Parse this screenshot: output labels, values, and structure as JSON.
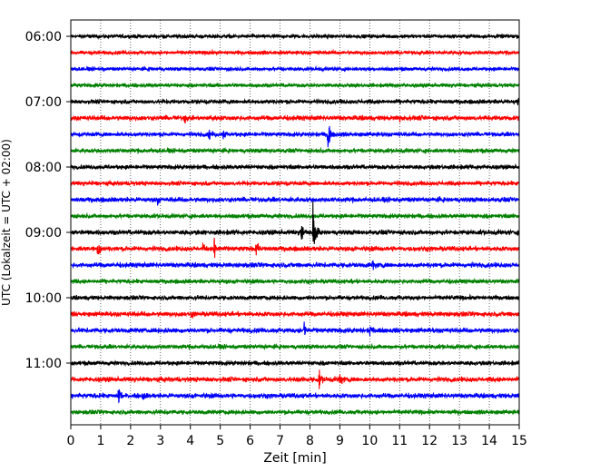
{
  "chart_data": {
    "type": "line",
    "title": "",
    "xlabel": "Zeit  [min]",
    "ylabel": "UTC (Lokalzeit = UTC + 02:00)",
    "xlim": [
      0,
      15
    ],
    "x_ticks": [
      "0",
      "1",
      "2",
      "3",
      "4",
      "5",
      "6",
      "7",
      "8",
      "9",
      "10",
      "11",
      "12",
      "13",
      "14",
      "15"
    ],
    "y_tick_labels": [
      "06:00",
      "07:00",
      "08:00",
      "09:00",
      "10:00",
      "11:00"
    ],
    "grid": "vertical dotted",
    "legend": "none",
    "colors": [
      "#000000",
      "#ff0000",
      "#0000ff",
      "#008000"
    ],
    "traces": [
      {
        "start": "06:00",
        "color": "#000000",
        "noise": 0.35,
        "events": []
      },
      {
        "start": "06:15",
        "color": "#ff0000",
        "noise": 0.35,
        "events": []
      },
      {
        "start": "06:30",
        "color": "#0000ff",
        "noise": 0.35,
        "events": []
      },
      {
        "start": "06:45",
        "color": "#008000",
        "noise": 0.35,
        "events": []
      },
      {
        "start": "07:00",
        "color": "#000000",
        "noise": 0.4,
        "events": [
          [
            14.95,
            0.6
          ]
        ]
      },
      {
        "start": "07:15",
        "color": "#ff0000",
        "noise": 0.45,
        "events": [
          [
            3.8,
            0.7
          ],
          [
            4.7,
            0.5
          ],
          [
            11.0,
            0.4
          ]
        ]
      },
      {
        "start": "07:30",
        "color": "#0000ff",
        "noise": 0.4,
        "events": [
          [
            4.6,
            0.8
          ],
          [
            5.1,
            0.8
          ],
          [
            8.6,
            1.9
          ]
        ]
      },
      {
        "start": "07:45",
        "color": "#008000",
        "noise": 0.4,
        "events": []
      },
      {
        "start": "08:00",
        "color": "#000000",
        "noise": 0.4,
        "events": []
      },
      {
        "start": "08:15",
        "color": "#ff0000",
        "noise": 0.4,
        "events": []
      },
      {
        "start": "08:30",
        "color": "#0000ff",
        "noise": 0.45,
        "events": [
          [
            2.9,
            0.6
          ]
        ]
      },
      {
        "start": "08:45",
        "color": "#008000",
        "noise": 0.4,
        "events": []
      },
      {
        "start": "09:00",
        "color": "#000000",
        "noise": 0.45,
        "events": [
          [
            7.7,
            1.4
          ],
          [
            8.1,
            3.6
          ]
        ]
      },
      {
        "start": "09:15",
        "color": "#ff0000",
        "noise": 0.45,
        "events": [
          [
            0.9,
            1.2
          ],
          [
            4.4,
            0.9
          ],
          [
            4.8,
            1.2
          ],
          [
            6.2,
            1.0
          ]
        ]
      },
      {
        "start": "09:30",
        "color": "#0000ff",
        "noise": 0.45,
        "events": [
          [
            10.1,
            0.7
          ]
        ]
      },
      {
        "start": "09:45",
        "color": "#008000",
        "noise": 0.4,
        "events": []
      },
      {
        "start": "10:00",
        "color": "#000000",
        "noise": 0.4,
        "events": []
      },
      {
        "start": "10:15",
        "color": "#ff0000",
        "noise": 0.45,
        "events": [
          [
            4.0,
            0.7
          ]
        ]
      },
      {
        "start": "10:30",
        "color": "#0000ff",
        "noise": 0.45,
        "events": [
          [
            7.8,
            0.9
          ],
          [
            10.0,
            0.7
          ]
        ]
      },
      {
        "start": "10:45",
        "color": "#008000",
        "noise": 0.4,
        "events": []
      },
      {
        "start": "11:00",
        "color": "#000000",
        "noise": 0.4,
        "events": []
      },
      {
        "start": "11:15",
        "color": "#ff0000",
        "noise": 0.45,
        "events": [
          [
            7.5,
            0.5
          ],
          [
            8.3,
            1.4
          ],
          [
            9.0,
            1.0
          ]
        ]
      },
      {
        "start": "11:30",
        "color": "#0000ff",
        "noise": 0.45,
        "events": [
          [
            1.6,
            1.0
          ],
          [
            2.4,
            0.6
          ]
        ]
      },
      {
        "start": "11:45",
        "color": "#008000",
        "noise": 0.4,
        "events": []
      }
    ]
  }
}
